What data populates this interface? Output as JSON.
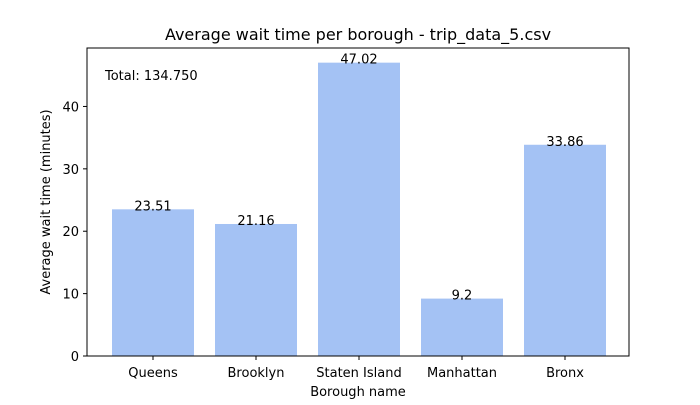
{
  "chart_data": {
    "type": "bar",
    "title": "Average wait time per borough - trip_data_5.csv",
    "xlabel": "Borough name",
    "ylabel": "Average wait time (minutes)",
    "categories": [
      "Queens",
      "Brooklyn",
      "Staten Island",
      "Manhattan",
      "Bronx"
    ],
    "values": [
      23.51,
      21.16,
      47.02,
      9.2,
      33.86
    ],
    "value_labels": [
      "23.51",
      "21.16",
      "47.02",
      "9.2",
      "33.86"
    ],
    "yticks": [
      0,
      10,
      20,
      30,
      40
    ],
    "ytick_labels": [
      "0",
      "10",
      "20",
      "30",
      "40"
    ],
    "ylim": [
      0,
      49.37
    ],
    "annotation": "Total: 134.750",
    "grid": false,
    "bar_color": "#a4c2f4"
  }
}
